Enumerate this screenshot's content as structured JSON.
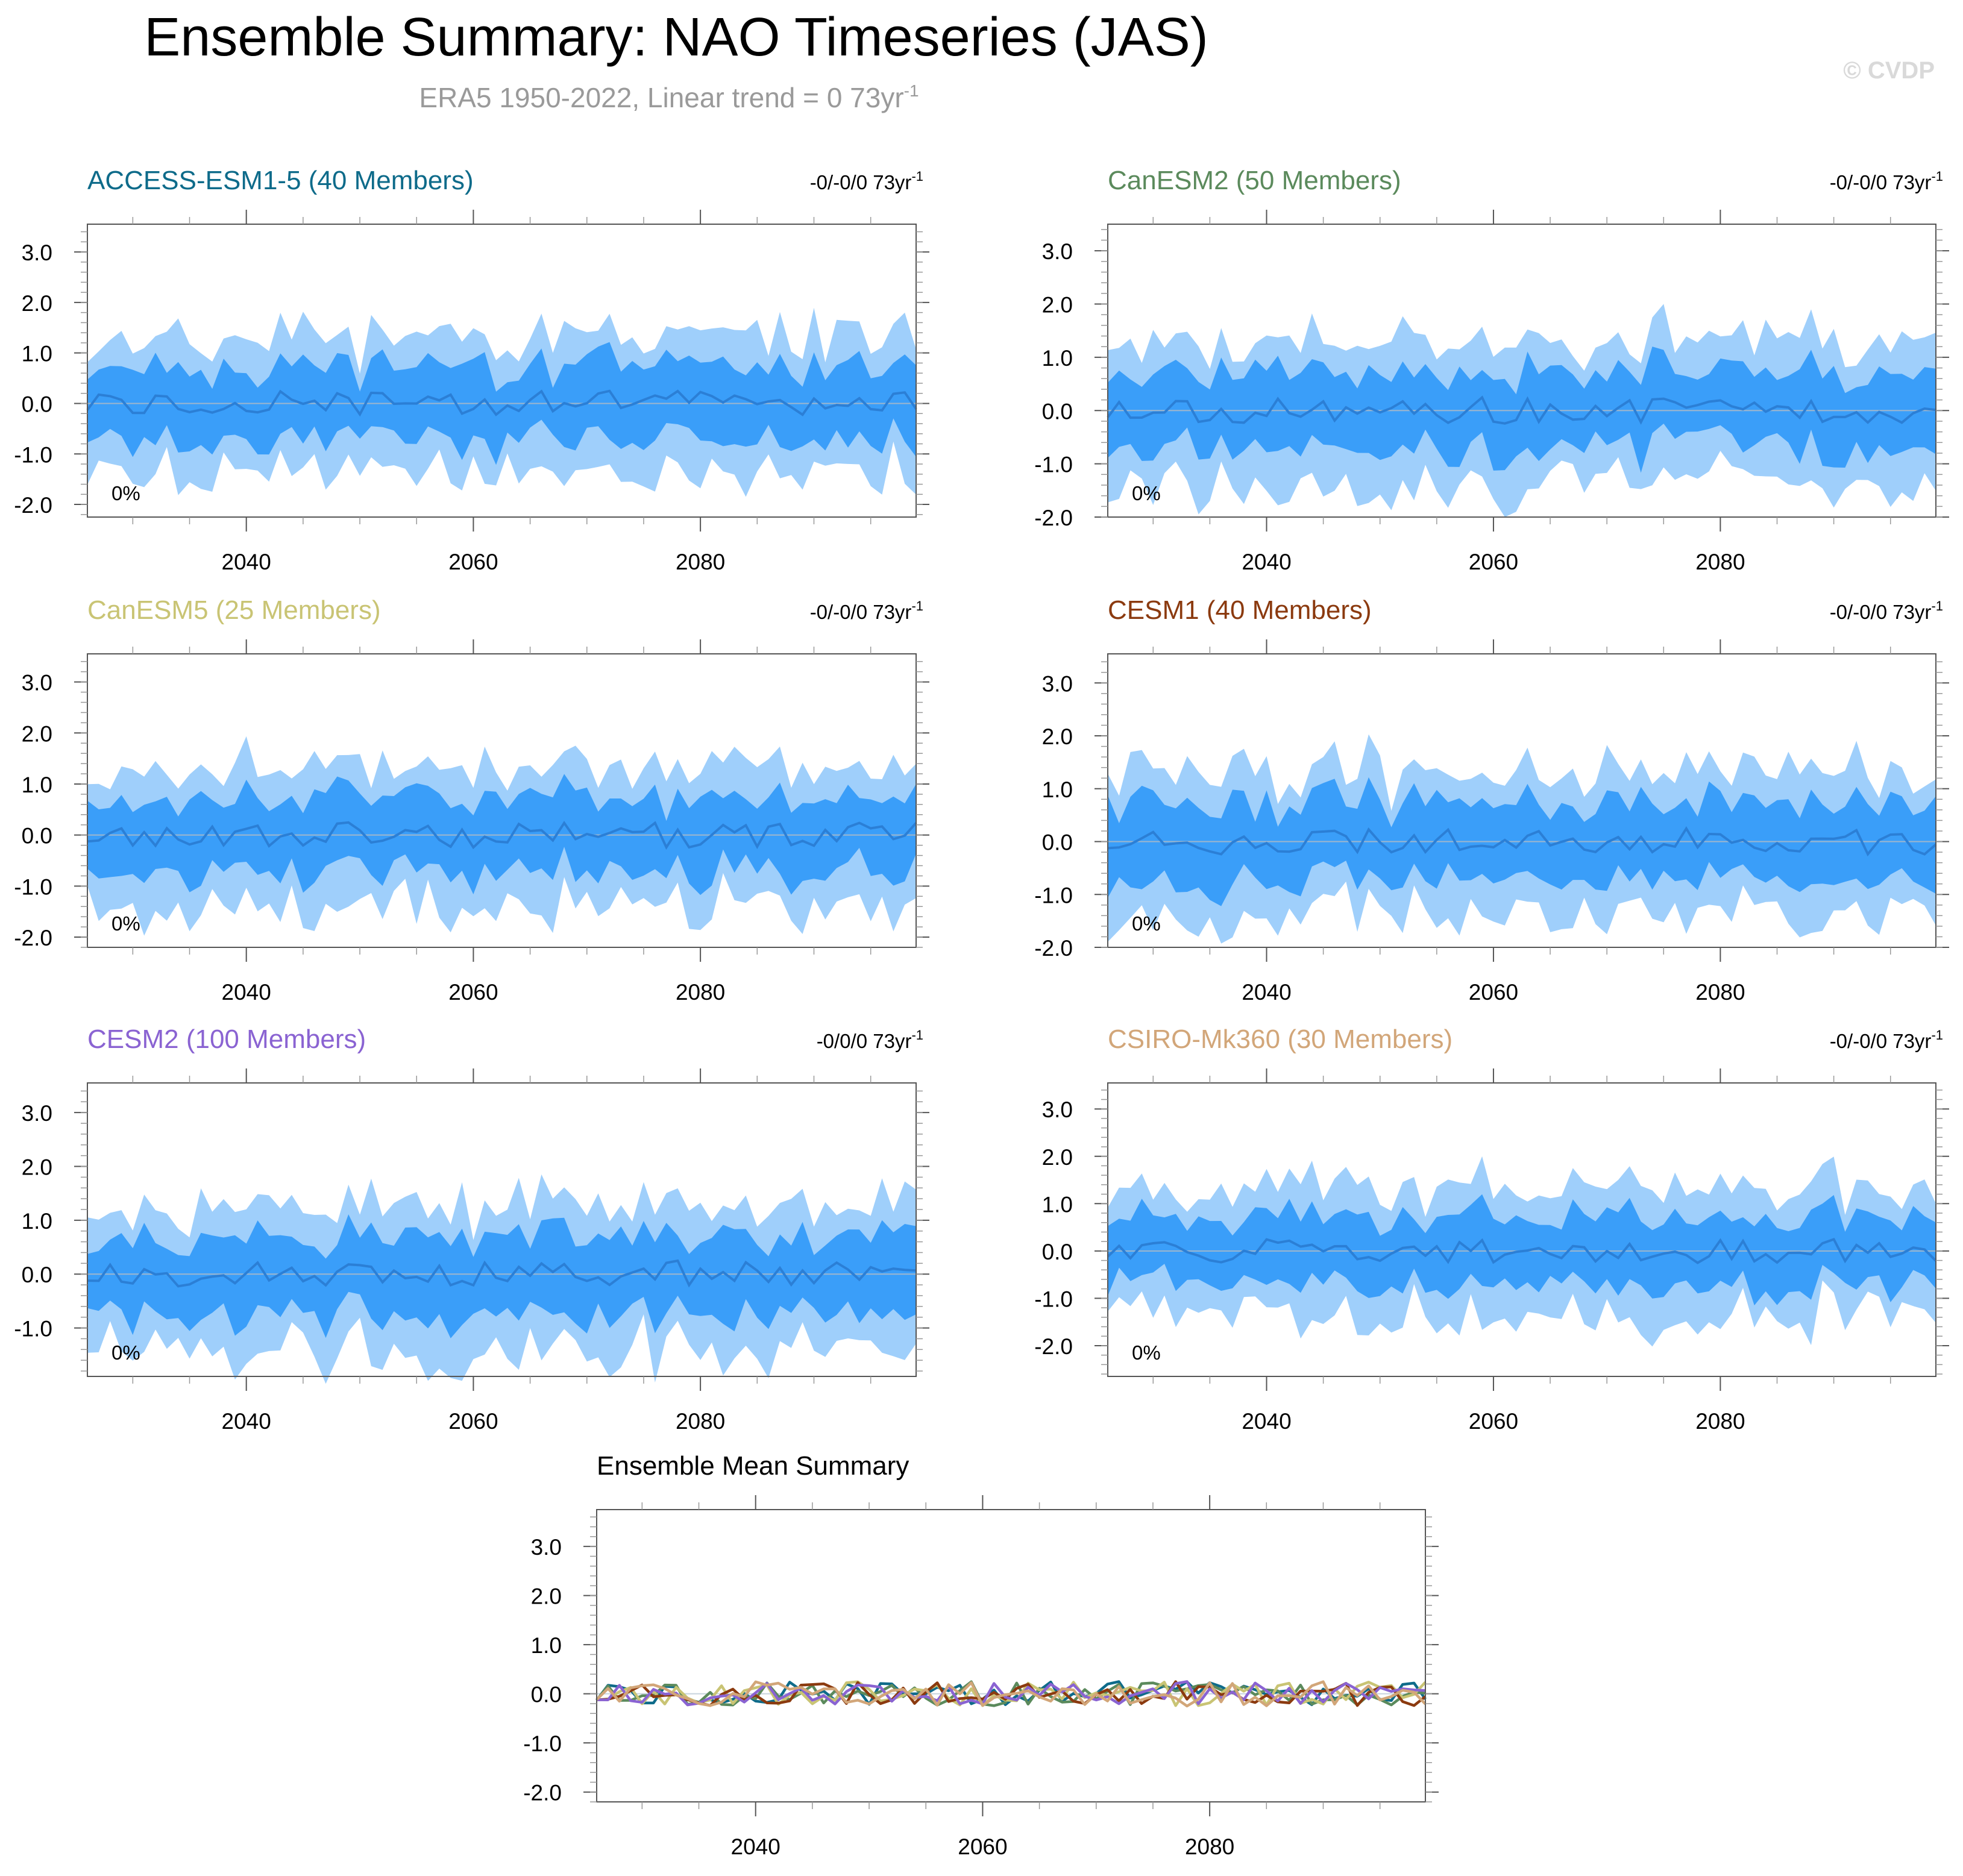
{
  "header": {
    "title": "Ensemble Summary: NAO Timeseries (JAS)",
    "subtitle_main": "ERA5 1950-2022, Linear trend = 0 73yr",
    "subtitle_sup": "-1",
    "copyright": "© CVDP"
  },
  "trend_unit_sup": "-1",
  "chart_data": [
    {
      "type": "area",
      "id": "access",
      "title": "ACCESS-ESM1-5 (40 Members)",
      "title_color": "#0e6b8a",
      "trend_label": "-0/-0/0 73yr",
      "pct_label": "0%",
      "x_range": [
        2026,
        2099
      ],
      "ylim": [
        -2.25,
        3.55
      ],
      "yticks": [
        "3.0",
        "2.0",
        "1.0",
        "0.0",
        "-1.0",
        "-2.0"
      ],
      "ytick_values": [
        3,
        2,
        1,
        0,
        -1,
        -2
      ],
      "xticks": [
        "2040",
        "2060",
        "2080"
      ],
      "xtick_values": [
        2040,
        2060,
        2080
      ],
      "seed": 11
    },
    {
      "type": "area",
      "id": "canesm2",
      "title": "CanESM2 (50 Members)",
      "title_color": "#5b8a5c",
      "trend_label": "-0/-0/0 73yr",
      "pct_label": "0%",
      "x_range": [
        2026,
        2099
      ],
      "ylim": [
        -2.0,
        3.5
      ],
      "yticks": [
        "3.0",
        "2.0",
        "1.0",
        "0.0",
        "-1.0",
        "-2.0"
      ],
      "ytick_values": [
        3,
        2,
        1,
        0,
        -1,
        -2
      ],
      "xticks": [
        "2040",
        "2060",
        "2080"
      ],
      "xtick_values": [
        2040,
        2060,
        2080
      ],
      "seed": 23
    },
    {
      "type": "area",
      "id": "canesm5",
      "title": "CanESM5 (25 Members)",
      "title_color": "#c9c474",
      "trend_label": "-0/-0/0 73yr",
      "pct_label": "0%",
      "x_range": [
        2026,
        2099
      ],
      "ylim": [
        -2.2,
        3.55
      ],
      "yticks": [
        "3.0",
        "2.0",
        "1.0",
        "0.0",
        "-1.0",
        "-2.0"
      ],
      "ytick_values": [
        3,
        2,
        1,
        0,
        -1,
        -2
      ],
      "xticks": [
        "2040",
        "2060",
        "2080"
      ],
      "xtick_values": [
        2040,
        2060,
        2080
      ],
      "seed": 37
    },
    {
      "type": "area",
      "id": "cesm1",
      "title": "CESM1 (40 Members)",
      "title_color": "#8b3a0f",
      "trend_label": "-0/-0/0 73yr",
      "pct_label": "0%",
      "x_range": [
        2026,
        2099
      ],
      "ylim": [
        -2.0,
        3.55
      ],
      "yticks": [
        "3.0",
        "2.0",
        "1.0",
        "0.0",
        "-1.0",
        "-2.0"
      ],
      "ytick_values": [
        3,
        2,
        1,
        0,
        -1,
        -2
      ],
      "xticks": [
        "2040",
        "2060",
        "2080"
      ],
      "xtick_values": [
        2040,
        2060,
        2080
      ],
      "seed": 41
    },
    {
      "type": "area",
      "id": "cesm2",
      "title": "CESM2 (100 Members)",
      "title_color": "#8a63d2",
      "trend_label": "-0/0/0 73yr",
      "pct_label": "0%",
      "x_range": [
        2026,
        2099
      ],
      "ylim": [
        -1.9,
        3.55
      ],
      "yticks": [
        "3.0",
        "2.0",
        "1.0",
        "0.0",
        "-1.0"
      ],
      "ytick_values": [
        3,
        2,
        1,
        0,
        -1
      ],
      "xticks": [
        "2040",
        "2060",
        "2080"
      ],
      "xtick_values": [
        2040,
        2060,
        2080
      ],
      "seed": 53
    },
    {
      "type": "area",
      "id": "csiro",
      "title": "CSIRO-Mk360 (30 Members)",
      "title_color": "#d2a679",
      "trend_label": "-0/-0/0 73yr",
      "pct_label": "0%",
      "x_range": [
        2026,
        2099
      ],
      "ylim": [
        -2.65,
        3.55
      ],
      "yticks": [
        "3.0",
        "2.0",
        "1.0",
        "0.0",
        "-1.0",
        "-2.0"
      ],
      "ytick_values": [
        3,
        2,
        1,
        0,
        -1,
        -2
      ],
      "xticks": [
        "2040",
        "2060",
        "2080"
      ],
      "xtick_values": [
        2040,
        2060,
        2080
      ],
      "seed": 67
    },
    {
      "type": "line",
      "id": "summary",
      "title": "Ensemble Mean Summary",
      "title_color": "#000000",
      "x_range": [
        2026,
        2099
      ],
      "ylim": [
        -2.2,
        3.75
      ],
      "yticks": [
        "3.0",
        "2.0",
        "1.0",
        "0.0",
        "-1.0",
        "-2.0"
      ],
      "ytick_values": [
        3,
        2,
        1,
        0,
        -1,
        -2
      ],
      "xticks": [
        "2040",
        "2060",
        "2080"
      ],
      "xtick_values": [
        2040,
        2060,
        2080
      ],
      "series": [
        {
          "name": "ACCESS-ESM1-5",
          "color": "#0e6b8a",
          "seed": 11
        },
        {
          "name": "CanESM2",
          "color": "#5b8a5c",
          "seed": 23
        },
        {
          "name": "CanESM5",
          "color": "#c9c474",
          "seed": 37
        },
        {
          "name": "CESM1",
          "color": "#8b3a0f",
          "seed": 41
        },
        {
          "name": "CESM2",
          "color": "#8a63d2",
          "seed": 53
        },
        {
          "name": "CSIRO-Mk360",
          "color": "#d2a679",
          "seed": 67
        }
      ]
    }
  ],
  "colors": {
    "outer_band": "#9fcffb",
    "inner_band": "#3a9ef9",
    "mean_line": "#2b7fd6",
    "zero_line": "#9fb6cc"
  }
}
